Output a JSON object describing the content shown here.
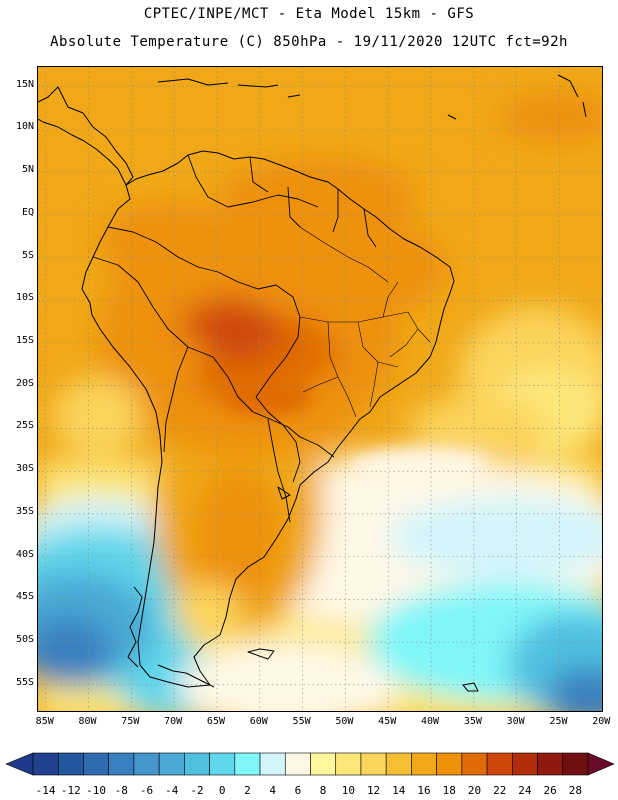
{
  "title": {
    "line1": "CPTEC/INPE/MCT -  Eta Model 15km - GFS",
    "line2": "Absolute Temperature (C) 850hPa - 19/11/2020 12UTC fct=92h"
  },
  "axes": {
    "lat_labels": [
      {
        "label": "15N",
        "lat": 15
      },
      {
        "label": "10N",
        "lat": 10
      },
      {
        "label": "5N",
        "lat": 5
      },
      {
        "label": "EQ",
        "lat": 0
      },
      {
        "label": "5S",
        "lat": -5
      },
      {
        "label": "10S",
        "lat": -10
      },
      {
        "label": "15S",
        "lat": -15
      },
      {
        "label": "20S",
        "lat": -20
      },
      {
        "label": "25S",
        "lat": -25
      },
      {
        "label": "30S",
        "lat": -30
      },
      {
        "label": "35S",
        "lat": -35
      },
      {
        "label": "40S",
        "lat": -40
      },
      {
        "label": "45S",
        "lat": -45
      },
      {
        "label": "50S",
        "lat": -50
      },
      {
        "label": "55S",
        "lat": -55
      }
    ],
    "lon_labels": [
      {
        "label": "85W",
        "lon": -85
      },
      {
        "label": "80W",
        "lon": -80
      },
      {
        "label": "75W",
        "lon": -75
      },
      {
        "label": "70W",
        "lon": -70
      },
      {
        "label": "65W",
        "lon": -65
      },
      {
        "label": "60W",
        "lon": -60
      },
      {
        "label": "55W",
        "lon": -55
      },
      {
        "label": "50W",
        "lon": -50
      },
      {
        "label": "45W",
        "lon": -45
      },
      {
        "label": "40W",
        "lon": -40
      },
      {
        "label": "35W",
        "lon": -35
      },
      {
        "label": "30W",
        "lon": -30
      },
      {
        "label": "25W",
        "lon": -25
      },
      {
        "label": "20W",
        "lon": -20
      }
    ],
    "lat_range": [
      -58.3,
      17.3
    ],
    "lon_range": [
      -85.9,
      -19.8
    ]
  },
  "colorbar": {
    "colors": [
      "#1f4390",
      "#24569f",
      "#2e6bb0",
      "#3a80c0",
      "#4496cc",
      "#4aa9d6",
      "#4fbfe0",
      "#5fd6ea",
      "#7ff6f9",
      "#d2f4fb",
      "#fff8e6",
      "#fff79e",
      "#fde77a",
      "#fbd45c",
      "#f5be35",
      "#f0a818",
      "#ee9109",
      "#e06a06",
      "#cf4708",
      "#b22e0b",
      "#90190e",
      "#6e1010"
    ],
    "under_color": "#1f3a8a",
    "over_color": "#6b0b2a",
    "labels": [
      "-14",
      "-12",
      "-10",
      "-8",
      "-6",
      "-4",
      "-2",
      "0",
      "2",
      "4",
      "6",
      "8",
      "10",
      "12",
      "14",
      "16",
      "18",
      "20",
      "22",
      "24",
      "26",
      "28"
    ]
  }
}
